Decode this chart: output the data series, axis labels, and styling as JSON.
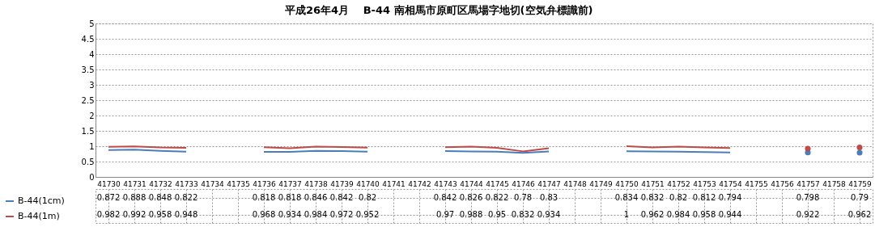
{
  "chart_data": {
    "type": "line",
    "title": "平成26年4月　 B-44 南相馬市原町区馬場字地切(空気弁標識前)",
    "categories": [
      "41730",
      "41731",
      "41732",
      "41733",
      "41734",
      "41735",
      "41736",
      "41737",
      "41738",
      "41739",
      "41740",
      "41741",
      "41742",
      "41743",
      "41744",
      "41745",
      "41746",
      "41747",
      "41748",
      "41749",
      "41750",
      "41751",
      "41752",
      "41753",
      "41754",
      "41755",
      "41756",
      "41757",
      "41758",
      "41759"
    ],
    "series": [
      {
        "name": "B-44(1cm)",
        "color": "#4a7ebb",
        "values": [
          0.872,
          0.888,
          0.848,
          0.822,
          null,
          null,
          0.818,
          0.818,
          0.846,
          0.842,
          0.82,
          null,
          null,
          0.842,
          0.826,
          0.822,
          0.78,
          0.83,
          null,
          null,
          0.834,
          0.832,
          0.82,
          0.812,
          0.794,
          null,
          null,
          0.798,
          null,
          0.79
        ]
      },
      {
        "name": "B-44(1m)",
        "color": "#be4b48",
        "values": [
          0.982,
          0.992,
          0.958,
          0.948,
          null,
          null,
          0.968,
          0.934,
          0.984,
          0.972,
          0.952,
          null,
          null,
          0.97,
          0.988,
          0.95,
          0.832,
          0.934,
          null,
          null,
          1,
          0.962,
          0.984,
          0.958,
          0.944,
          null,
          null,
          0.922,
          null,
          0.962
        ]
      }
    ],
    "ylim": [
      0,
      5
    ],
    "yticks": [
      0,
      0.5,
      1,
      1.5,
      2,
      2.5,
      3,
      3.5,
      4,
      4.5,
      5
    ],
    "grid": "y",
    "legend": "bottom left",
    "data_labels": true
  }
}
